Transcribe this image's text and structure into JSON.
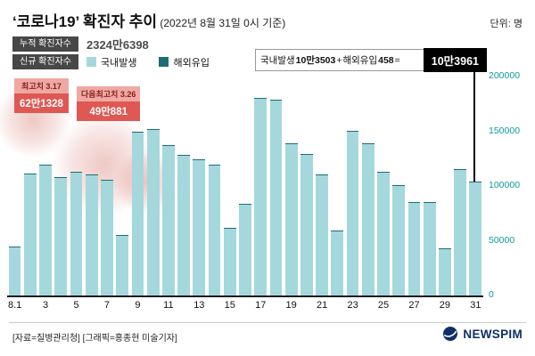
{
  "header": {
    "title": "‘코로나19’ 확진자 추이",
    "title_suffix": " (2022년 8월 31일 0시 기준)",
    "unit_label": "단위: 명"
  },
  "stats": {
    "cumulative_label": "누적 확진자수",
    "cumulative_value": "2324만6398",
    "new_label": "신규 확진자수",
    "legend": [
      {
        "label": "국내발생",
        "color": "#a5d8dd"
      },
      {
        "label": "해외유입",
        "color": "#1d6d76"
      }
    ]
  },
  "annotation": {
    "domestic_label": "국내발생",
    "domestic_value": "10만3503",
    "plus": " + ",
    "imported_label": "해외유입",
    "imported_value": "458",
    "equals": " = ",
    "total": "10만3961"
  },
  "peaks": [
    {
      "label": "최고치 3.17",
      "value": "62만1328"
    },
    {
      "label": "다음최고치 3.26",
      "value": "49만881"
    }
  ],
  "footer": {
    "source": "[자료=질병관리청] [그래픽=홍종현 미술기자]",
    "logo_text": "NEWSPIM"
  },
  "chart_data": {
    "type": "bar",
    "stacked": true,
    "title": "‘코로나19’ 확진자 추이 (2022년 8월 31일 0시 기준)",
    "ylabel": "명",
    "ylim": [
      0,
      200000
    ],
    "yticks": [
      0,
      50000,
      100000,
      150000,
      200000
    ],
    "grid": false,
    "legend_position": "top",
    "x": [
      "8.1",
      "8.2",
      "8.3",
      "8.4",
      "8.5",
      "8.6",
      "8.7",
      "8.8",
      "8.9",
      "8.10",
      "8.11",
      "8.12",
      "8.13",
      "8.14",
      "8.15",
      "8.16",
      "8.17",
      "8.18",
      "8.19",
      "8.20",
      "8.21",
      "8.22",
      "8.23",
      "8.24",
      "8.25",
      "8.26",
      "8.27",
      "8.28",
      "8.29",
      "8.30",
      "8.31"
    ],
    "series": [
      {
        "name": "국내발생",
        "color": "#a5d8dd",
        "values": [
          44239,
          111339,
          119472,
          107444,
          112451,
          110216,
          105057,
          54842,
          149447,
          151342,
          136791,
          128264,
          124142,
          119153,
          61628,
          83678,
          180353,
          178124,
          138362,
          128961,
          110494,
          58596,
          149808,
          138889,
          112921,
          100690,
          84845,
          85090,
          42692,
          115188,
          103503
        ]
      },
      {
        "name": "해외유입",
        "color": "#1d6d76",
        "values": [
          450,
          450,
          450,
          450,
          450,
          450,
          450,
          450,
          450,
          450,
          450,
          450,
          450,
          450,
          450,
          450,
          450,
          450,
          450,
          450,
          450,
          450,
          450,
          450,
          450,
          450,
          450,
          450,
          450,
          450,
          458
        ]
      }
    ],
    "xticks": [
      {
        "index": 0,
        "label": "8.1"
      },
      {
        "index": 2,
        "label": "3"
      },
      {
        "index": 4,
        "label": "5"
      },
      {
        "index": 6,
        "label": "7"
      },
      {
        "index": 8,
        "label": "9"
      },
      {
        "index": 10,
        "label": "11"
      },
      {
        "index": 12,
        "label": "13"
      },
      {
        "index": 14,
        "label": "15"
      },
      {
        "index": 16,
        "label": "17"
      },
      {
        "index": 18,
        "label": "19"
      },
      {
        "index": 20,
        "label": "21"
      },
      {
        "index": 22,
        "label": "23"
      },
      {
        "index": 24,
        "label": "25"
      },
      {
        "index": 26,
        "label": "27"
      },
      {
        "index": 28,
        "label": "29"
      },
      {
        "index": 30,
        "label": "31"
      }
    ]
  }
}
